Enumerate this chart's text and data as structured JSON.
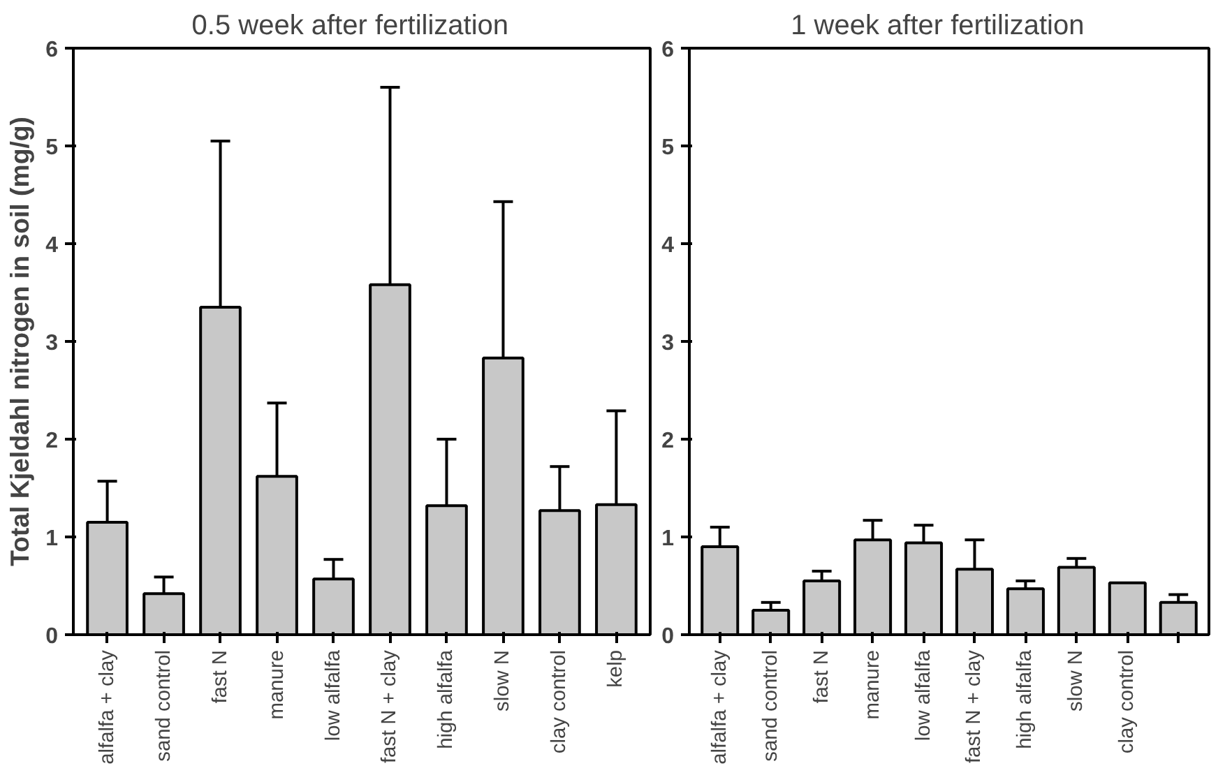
{
  "chart_data": [
    {
      "type": "bar",
      "title": "0.5  week  after  fertilization",
      "ylabel": "Total Kjeldahl nitrogen in soil (mg/g)",
      "categories": [
        "alfalfa + clay",
        "sand control",
        "fast N",
        "manure",
        "low alfalfa",
        "fast N + clay",
        "high alfalfa",
        "slow N",
        "clay control",
        "kelp"
      ],
      "values": [
        1.15,
        0.42,
        3.35,
        1.62,
        0.57,
        3.58,
        1.32,
        2.83,
        1.27,
        1.33
      ],
      "errors": [
        0.42,
        0.17,
        1.7,
        0.75,
        0.2,
        2.02,
        0.68,
        1.6,
        0.45,
        0.96
      ],
      "color": "#c8c8c8",
      "ylim": [
        0,
        6
      ],
      "yticks": [
        0,
        1,
        2,
        3,
        4,
        5,
        6
      ]
    },
    {
      "type": "bar",
      "title": "1  week  after  fertilization",
      "categories": [
        "alfalfa + clay",
        "sand control",
        "fast N",
        "manure",
        "low alfalfa",
        "fast N + clay",
        "high alfalfa",
        "slow N",
        "clay control",
        null
      ],
      "values": [
        0.9,
        0.25,
        0.55,
        0.97,
        0.94,
        0.67,
        0.47,
        0.69,
        0.53,
        0.33
      ],
      "errors": [
        0.2,
        0.08,
        0.1,
        0.2,
        0.18,
        0.3,
        0.08,
        0.09,
        null,
        0.08
      ],
      "color": "#c8c8c8",
      "ylim": [
        0,
        6
      ],
      "yticks": [
        0,
        1,
        2,
        3,
        4,
        5,
        6
      ]
    }
  ]
}
